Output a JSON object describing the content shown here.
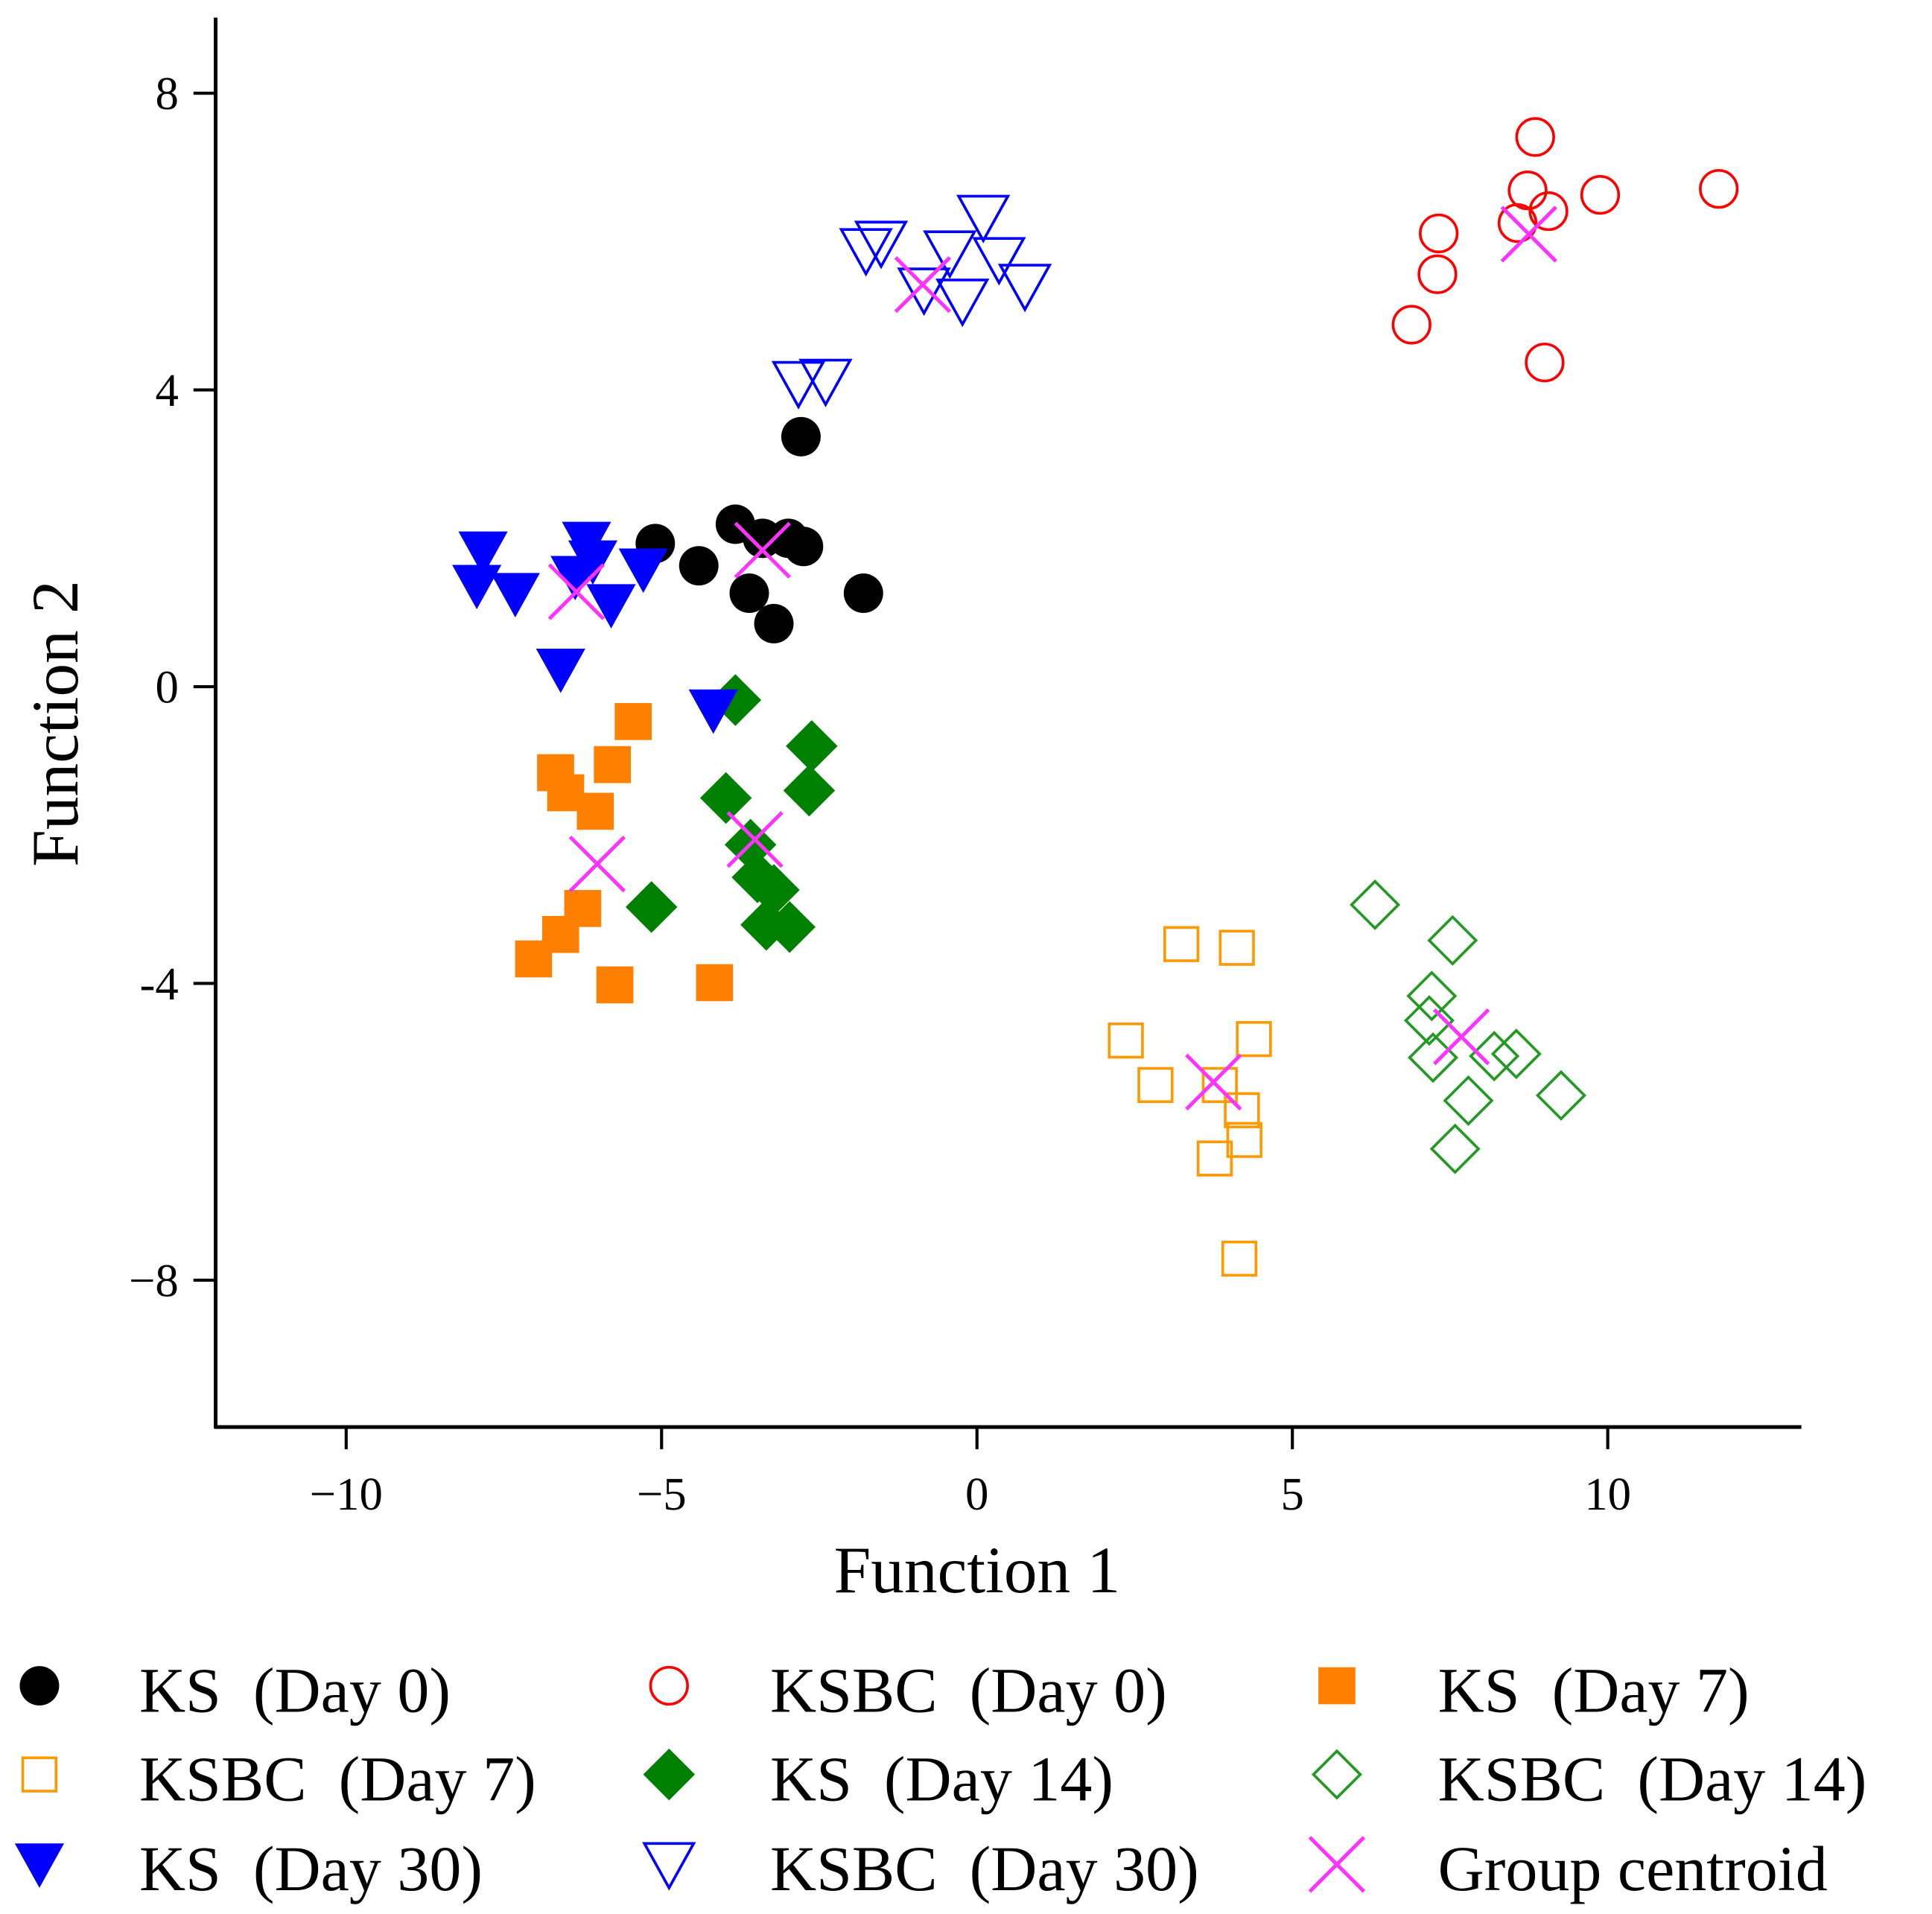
{
  "chart_data": {
    "type": "scatter",
    "title": "",
    "xlabel": "Function 1",
    "ylabel": "Function 2",
    "xlim": [
      -12.07,
      13.07
    ],
    "ylim": [
      -9.98,
      9.02
    ],
    "xticks": [
      -10,
      -5,
      0,
      5,
      10
    ],
    "yticks": [
      8,
      4,
      0,
      -4,
      -8
    ],
    "xtick_labels": [
      "−10",
      "−5",
      "0",
      "5",
      "10"
    ],
    "ytick_labels": [
      "8",
      "4",
      "0",
      "-4",
      "−8"
    ],
    "grid": false,
    "legend_placement": "bottom",
    "series": [
      {
        "name": "KS  (Day 0)",
        "marker": "circle",
        "filled": true,
        "color": "#000000",
        "points": [
          [
            -5.1,
            1.93
          ],
          [
            -4.41,
            1.63
          ],
          [
            -3.83,
            2.19
          ],
          [
            -3.4,
            2.0
          ],
          [
            -2.99,
            2.0
          ],
          [
            -2.75,
            1.89
          ],
          [
            -3.61,
            1.26
          ],
          [
            -3.22,
            0.85
          ],
          [
            -2.79,
            3.37
          ],
          [
            -1.8,
            1.26
          ]
        ],
        "centroid": [
          -3.4,
          1.84
        ]
      },
      {
        "name": "KSBC  (Day 0)",
        "marker": "circle",
        "filled": false,
        "color": "#ff0000",
        "points": [
          [
            8.85,
            7.41
          ],
          [
            8.73,
            6.69
          ],
          [
            9.06,
            6.41
          ],
          [
            8.57,
            6.25
          ],
          [
            9.88,
            6.63
          ],
          [
            11.76,
            6.71
          ],
          [
            7.32,
            6.11
          ],
          [
            7.3,
            5.56
          ],
          [
            6.89,
            4.88
          ],
          [
            9.0,
            4.37
          ]
        ],
        "centroid": [
          8.75,
          6.1
        ]
      },
      {
        "name": "KS  (Day 7)",
        "marker": "square",
        "filled": true,
        "color": "#ff8000",
        "points": [
          [
            -5.45,
            -0.47
          ],
          [
            -5.78,
            -1.05
          ],
          [
            -6.68,
            -1.16
          ],
          [
            -6.52,
            -1.43
          ],
          [
            -6.05,
            -1.68
          ],
          [
            -6.25,
            -2.99
          ],
          [
            -6.6,
            -3.34
          ],
          [
            -7.03,
            -3.67
          ],
          [
            -5.74,
            -4.02
          ],
          [
            -4.16,
            -3.99
          ]
        ],
        "centroid": [
          -6.02,
          -2.39
        ]
      },
      {
        "name": "KSBC  (Day 7)",
        "marker": "square",
        "filled": false,
        "color": "#ff9900",
        "points": [
          [
            3.24,
            -3.47
          ],
          [
            4.12,
            -3.52
          ],
          [
            2.36,
            -4.77
          ],
          [
            4.39,
            -4.75
          ],
          [
            2.83,
            -5.37
          ],
          [
            3.85,
            -5.37
          ],
          [
            4.2,
            -5.71
          ],
          [
            4.24,
            -6.11
          ],
          [
            3.77,
            -6.36
          ],
          [
            4.16,
            -7.71
          ]
        ],
        "centroid": [
          3.75,
          -5.33
        ]
      },
      {
        "name": "KS  (Day 14)",
        "marker": "diamond",
        "filled": true,
        "color": "#008000",
        "points": [
          [
            -3.83,
            -0.18
          ],
          [
            -2.62,
            -0.8
          ],
          [
            -3.98,
            -1.5
          ],
          [
            -2.66,
            -1.4
          ],
          [
            -3.59,
            -2.13
          ],
          [
            -3.48,
            -2.57
          ],
          [
            -3.22,
            -2.74
          ],
          [
            -3.34,
            -3.21
          ],
          [
            -2.97,
            -3.24
          ],
          [
            -5.16,
            -2.97
          ]
        ],
        "centroid": [
          -3.52,
          -2.06
        ]
      },
      {
        "name": "KSBC  (Day 14)",
        "marker": "diamond",
        "filled": false,
        "color": "#229922",
        "points": [
          [
            6.31,
            -2.94
          ],
          [
            7.54,
            -3.42
          ],
          [
            7.21,
            -4.17
          ],
          [
            7.17,
            -4.5
          ],
          [
            7.23,
            -5.0
          ],
          [
            8.2,
            -4.98
          ],
          [
            8.55,
            -4.95
          ],
          [
            9.26,
            -5.51
          ],
          [
            7.79,
            -5.58
          ],
          [
            7.58,
            -6.23
          ]
        ],
        "centroid": [
          7.68,
          -4.72
        ]
      },
      {
        "name": "KS  (Day 30)",
        "marker": "triangle-down",
        "filled": true,
        "color": "#0000ff",
        "points": [
          [
            -7.83,
            1.81
          ],
          [
            -7.93,
            1.36
          ],
          [
            -7.32,
            1.25
          ],
          [
            -6.19,
            1.94
          ],
          [
            -6.09,
            1.69
          ],
          [
            -6.37,
            1.48
          ],
          [
            -5.8,
            1.1
          ],
          [
            -5.29,
            1.58
          ],
          [
            -6.6,
            0.23
          ],
          [
            -4.18,
            -0.32
          ]
        ],
        "centroid": [
          -6.35,
          1.28
        ]
      },
      {
        "name": "KSBC  (Day 30)",
        "marker": "triangle-down",
        "filled": false,
        "color": "#0000ff",
        "points": [
          [
            0.1,
            6.33
          ],
          [
            -1.52,
            5.98
          ],
          [
            -1.76,
            5.88
          ],
          [
            -0.43,
            5.85
          ],
          [
            0.35,
            5.76
          ],
          [
            -0.84,
            5.35
          ],
          [
            -0.23,
            5.2
          ],
          [
            0.76,
            5.4
          ],
          [
            -2.83,
            4.09
          ],
          [
            -2.4,
            4.12
          ]
        ],
        "centroid": [
          -0.86,
          5.42
        ]
      }
    ],
    "centroid_legend": {
      "name": "Group centroid",
      "marker": "x",
      "color": "#ff33ff"
    }
  }
}
